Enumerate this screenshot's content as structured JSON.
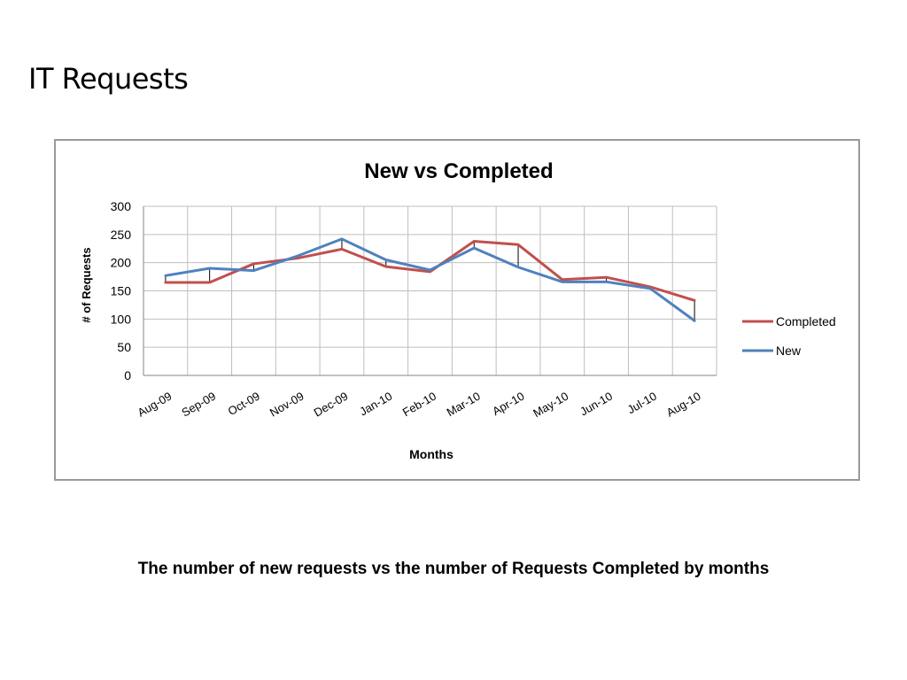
{
  "slide": {
    "title": "IT Requests",
    "caption": "The number of new requests vs the number of Requests Completed by months"
  },
  "colors": {
    "completed": "#c0504d",
    "new": "#4f81bd",
    "grid": "#bfbfbf",
    "axis": "#868686"
  },
  "chart_data": {
    "type": "line",
    "title": "New vs Completed",
    "xlabel": "Months",
    "ylabel": "# of Requests",
    "categories": [
      "Aug-09",
      "Sep-09",
      "Oct-09",
      "Nov-09",
      "Dec-09",
      "Jan-10",
      "Feb-10",
      "Mar-10",
      "Apr-10",
      "May-10",
      "Jun-10",
      "Jul-10",
      "Aug-10"
    ],
    "ylim": [
      0,
      300
    ],
    "yticks": [
      0,
      50,
      100,
      150,
      200,
      250,
      300
    ],
    "grid": true,
    "high_low_lines": true,
    "legend_position": "right",
    "series": [
      {
        "name": "Completed",
        "color": "#c0504d",
        "values": [
          165,
          165,
          198,
          208,
          224,
          193,
          184,
          238,
          232,
          170,
          174,
          157,
          133
        ]
      },
      {
        "name": "New",
        "color": "#4f81bd",
        "values": [
          177,
          190,
          186,
          212,
          242,
          205,
          187,
          226,
          192,
          166,
          166,
          154,
          97
        ]
      }
    ]
  }
}
